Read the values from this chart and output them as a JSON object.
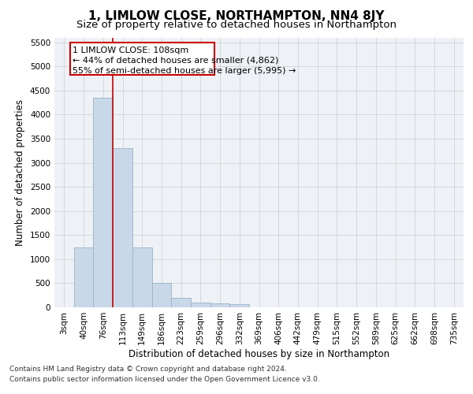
{
  "title": "1, LIMLOW CLOSE, NORTHAMPTON, NN4 8JY",
  "subtitle": "Size of property relative to detached houses in Northampton",
  "xlabel": "Distribution of detached houses by size in Northampton",
  "ylabel": "Number of detached properties",
  "categories": [
    "3sqm",
    "40sqm",
    "76sqm",
    "113sqm",
    "149sqm",
    "186sqm",
    "223sqm",
    "259sqm",
    "296sqm",
    "332sqm",
    "369sqm",
    "406sqm",
    "442sqm",
    "479sqm",
    "515sqm",
    "552sqm",
    "589sqm",
    "625sqm",
    "662sqm",
    "698sqm",
    "735sqm"
  ],
  "values": [
    0,
    1250,
    4350,
    3300,
    1250,
    500,
    200,
    100,
    80,
    70,
    0,
    0,
    0,
    0,
    0,
    0,
    0,
    0,
    0,
    0,
    0
  ],
  "bar_color": "#c8d8e8",
  "bar_edge_color": "#9ab4c4",
  "annotation_line_color": "#cc0000",
  "annotation_box_text_line1": "1 LIMLOW CLOSE: 108sqm",
  "annotation_box_text_line2": "← 44% of detached houses are smaller (4,862)",
  "annotation_box_text_line3": "55% of semi-detached houses are larger (5,995) →",
  "ylim": [
    0,
    5600
  ],
  "yticks": [
    0,
    500,
    1000,
    1500,
    2000,
    2500,
    3000,
    3500,
    4000,
    4500,
    5000,
    5500
  ],
  "grid_color": "#cccccc",
  "background_color": "#eef2f7",
  "footer_line1": "Contains HM Land Registry data © Crown copyright and database right 2024.",
  "footer_line2": "Contains public sector information licensed under the Open Government Licence v3.0.",
  "title_fontsize": 11,
  "subtitle_fontsize": 9.5,
  "axis_label_fontsize": 8.5,
  "tick_fontsize": 7.5,
  "annotation_fontsize": 8,
  "footer_fontsize": 6.5
}
